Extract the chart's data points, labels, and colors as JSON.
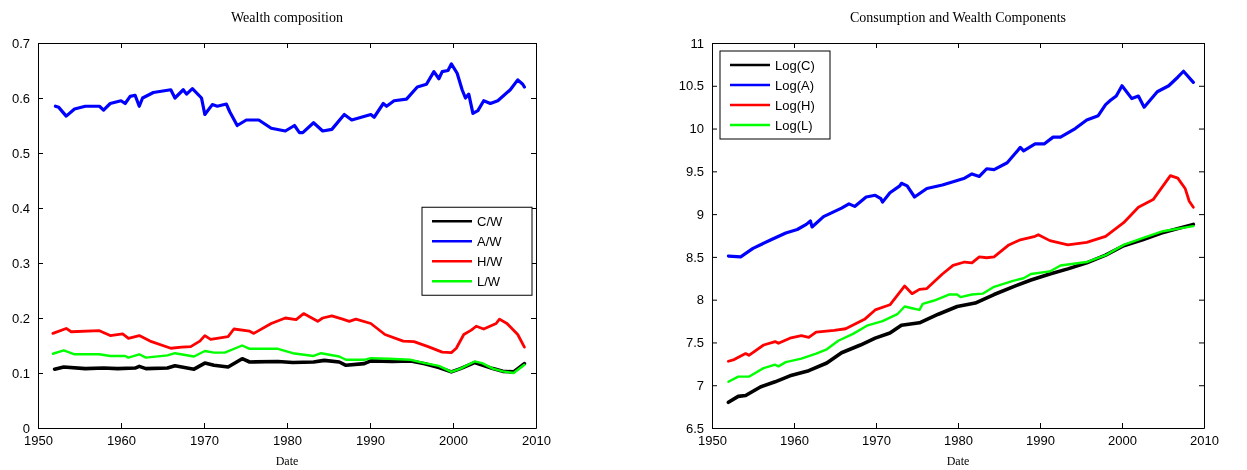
{
  "chart_data": [
    {
      "type": "line",
      "title": "Wealth composition",
      "xlabel": "Date",
      "xlim": [
        1950,
        2010
      ],
      "xticks": [
        1950,
        1960,
        1970,
        1980,
        1990,
        2000,
        2010
      ],
      "ylim": [
        0,
        0.7
      ],
      "yticks": [
        0,
        0.1,
        0.2,
        0.3,
        0.4,
        0.5,
        0.6,
        0.7
      ],
      "grid": false,
      "legend": "right",
      "series": [
        {
          "name": "C/W",
          "color": "#000000",
          "x": [
            1952,
            1953.1,
            1955.7,
            1957.9,
            1959.6,
            1961.7,
            1962.2,
            1963,
            1965.6,
            1966.5,
            1968.8,
            1970.1,
            1971.2,
            1972.9,
            1974.6,
            1975.5,
            1978.9,
            1980.7,
            1983.2,
            1984.5,
            1986.3,
            1987.1,
            1989.3,
            1990.1,
            1992.7,
            1994.9,
            1996.6,
            1998.3,
            1999.8,
            2000.9,
            2002.6,
            2004.8,
            2006,
            2007.3,
            2008.6
          ],
          "values": [
            0.107,
            0.111,
            0.108,
            0.109,
            0.108,
            0.109,
            0.112,
            0.108,
            0.109,
            0.113,
            0.107,
            0.118,
            0.114,
            0.111,
            0.126,
            0.12,
            0.121,
            0.119,
            0.12,
            0.123,
            0.12,
            0.114,
            0.117,
            0.122,
            0.121,
            0.122,
            0.117,
            0.11,
            0.102,
            0.108,
            0.119,
            0.108,
            0.103,
            0.102,
            0.117
          ]
        },
        {
          "name": "A/W",
          "color": "#0000ff",
          "x": [
            1952.1,
            1952.5,
            1953.4,
            1954.4,
            1955.7,
            1957.4,
            1957.9,
            1958.7,
            1960,
            1960.5,
            1961.1,
            1961.7,
            1962.2,
            1962.6,
            1963.9,
            1966,
            1966.5,
            1967.5,
            1967.9,
            1968.6,
            1969.7,
            1970.1,
            1971,
            1971.6,
            1972.7,
            1973.1,
            1974,
            1975.1,
            1976.6,
            1978.1,
            1979.8,
            1980.9,
            1981.5,
            1981.9,
            1983.2,
            1984.3,
            1985.4,
            1986.9,
            1987.8,
            1990.1,
            1990.5,
            1991.6,
            1992,
            1992.9,
            1994.4,
            1995.7,
            1996.8,
            1997.7,
            1998.3,
            1998.7,
            1999.4,
            1999.8,
            2000.5,
            2001.1,
            2001.5,
            2001.9,
            2002.4,
            2003,
            2003.7,
            2004.5,
            2005.4,
            2006.9,
            2007.8,
            2008.4,
            2008.6
          ],
          "values": [
            0.585,
            0.583,
            0.567,
            0.58,
            0.585,
            0.585,
            0.578,
            0.59,
            0.595,
            0.59,
            0.603,
            0.605,
            0.585,
            0.6,
            0.61,
            0.615,
            0.6,
            0.615,
            0.607,
            0.617,
            0.6,
            0.57,
            0.588,
            0.585,
            0.589,
            0.575,
            0.55,
            0.56,
            0.56,
            0.545,
            0.54,
            0.55,
            0.537,
            0.537,
            0.555,
            0.54,
            0.543,
            0.57,
            0.56,
            0.57,
            0.565,
            0.59,
            0.585,
            0.595,
            0.598,
            0.62,
            0.625,
            0.648,
            0.635,
            0.648,
            0.65,
            0.662,
            0.645,
            0.615,
            0.6,
            0.607,
            0.572,
            0.577,
            0.595,
            0.59,
            0.595,
            0.615,
            0.633,
            0.625,
            0.62
          ]
        },
        {
          "name": "H/W",
          "color": "#ff0000",
          "x": [
            1951.8,
            1953.4,
            1954,
            1957.4,
            1958.7,
            1960.2,
            1960.9,
            1962.2,
            1963.5,
            1966,
            1967.3,
            1968.4,
            1969.5,
            1970.1,
            1970.8,
            1972.9,
            1973.6,
            1975.5,
            1976,
            1978.1,
            1979.8,
            1981.1,
            1982,
            1983.7,
            1984.3,
            1985.4,
            1986.7,
            1987.5,
            1988.3,
            1990.1,
            1991.8,
            1994,
            1995.3,
            1997,
            1998.7,
            1999.8,
            2000.4,
            2001.3,
            2002.2,
            2002.8,
            2003.7,
            2005.2,
            2005.6,
            2006.5,
            2007.8,
            2008.6
          ],
          "values": [
            0.172,
            0.181,
            0.175,
            0.177,
            0.168,
            0.171,
            0.163,
            0.168,
            0.158,
            0.145,
            0.147,
            0.148,
            0.158,
            0.168,
            0.161,
            0.166,
            0.18,
            0.176,
            0.172,
            0.19,
            0.2,
            0.197,
            0.208,
            0.194,
            0.2,
            0.204,
            0.198,
            0.194,
            0.198,
            0.19,
            0.17,
            0.158,
            0.157,
            0.148,
            0.138,
            0.137,
            0.145,
            0.17,
            0.178,
            0.185,
            0.18,
            0.19,
            0.198,
            0.19,
            0.17,
            0.147
          ]
        },
        {
          "name": "L/W",
          "color": "#00ff00",
          "x": [
            1951.8,
            1953.1,
            1954.4,
            1957.4,
            1958.7,
            1960.5,
            1960.9,
            1962.2,
            1963,
            1965.6,
            1966.5,
            1968.8,
            1970.1,
            1971.2,
            1972.5,
            1974.6,
            1975.5,
            1978.9,
            1980.7,
            1983.2,
            1984.1,
            1986.3,
            1987.1,
            1989.3,
            1990.1,
            1992.3,
            1994.9,
            1996.6,
            1998.3,
            1999.8,
            2000.9,
            2002.6,
            2003.5,
            2004.8,
            2006,
            2007.3,
            2008.6
          ],
          "values": [
            0.135,
            0.141,
            0.134,
            0.134,
            0.131,
            0.131,
            0.128,
            0.134,
            0.128,
            0.132,
            0.136,
            0.13,
            0.14,
            0.137,
            0.137,
            0.15,
            0.144,
            0.144,
            0.136,
            0.131,
            0.136,
            0.13,
            0.124,
            0.124,
            0.127,
            0.126,
            0.124,
            0.118,
            0.113,
            0.102,
            0.108,
            0.121,
            0.118,
            0.108,
            0.103,
            0.1,
            0.115
          ]
        }
      ]
    },
    {
      "type": "line",
      "title": "Consumption and Wealth Components",
      "xlabel": "Date",
      "xlim": [
        1950,
        2010
      ],
      "xticks": [
        1950,
        1960,
        1970,
        1980,
        1990,
        2000,
        2010
      ],
      "ylim": [
        6.5,
        11
      ],
      "yticks": [
        6.5,
        7,
        7.5,
        8,
        8.5,
        9,
        9.5,
        10,
        10.5,
        11
      ],
      "grid": false,
      "legend": "top left",
      "series": [
        {
          "name": "Log(C)",
          "color": "#000000",
          "x": [
            1952,
            1953.2,
            1954.1,
            1955.9,
            1957.7,
            1959.5,
            1961.8,
            1964,
            1965.8,
            1968.1,
            1969.9,
            1971.7,
            1973.1,
            1975.3,
            1977.6,
            1979.9,
            1982.1,
            1984.4,
            1986.7,
            1988.9,
            1991.2,
            1993.4,
            1995.7,
            1998,
            2000.2,
            2002.5,
            2004.8,
            2008.7
          ],
          "values": [
            6.8,
            6.87,
            6.88,
            6.98,
            7.04,
            7.11,
            7.17,
            7.26,
            7.38,
            7.47,
            7.55,
            7.61,
            7.7,
            7.73,
            7.83,
            7.92,
            7.96,
            8.06,
            8.15,
            8.23,
            8.3,
            8.36,
            8.43,
            8.52,
            8.63,
            8.7,
            8.78,
            8.88
          ]
        },
        {
          "name": "Log(A)",
          "color": "#0000ff",
          "x": [
            1952,
            1953.5,
            1955,
            1957.2,
            1959,
            1960.4,
            1961.5,
            1962,
            1962.2,
            1963.6,
            1965.8,
            1966.7,
            1967.4,
            1968.8,
            1969.9,
            1970.6,
            1970.8,
            1971.7,
            1972.9,
            1973.1,
            1973.8,
            1974.7,
            1976.2,
            1978.1,
            1980.8,
            1981.7,
            1982.6,
            1983.5,
            1984.4,
            1986,
            1987.6,
            1988,
            1989.4,
            1990.5,
            1991.6,
            1992.5,
            1994.3,
            1995.7,
            1997.1,
            1998,
            1998.6,
            1999.3,
            2000,
            2001.2,
            2002,
            2002.7,
            2004.3,
            2005.7,
            2006.8,
            2007.5,
            2008.7
          ],
          "values": [
            8.51,
            8.5,
            8.6,
            8.7,
            8.78,
            8.82,
            8.88,
            8.92,
            8.85,
            8.97,
            9.07,
            9.12,
            9.09,
            9.2,
            9.22,
            9.18,
            9.14,
            9.25,
            9.33,
            9.36,
            9.33,
            9.2,
            9.3,
            9.34,
            9.42,
            9.47,
            9.44,
            9.53,
            9.52,
            9.6,
            9.78,
            9.74,
            9.82,
            9.82,
            9.9,
            9.9,
            10,
            10.1,
            10.15,
            10.28,
            10.33,
            10.38,
            10.5,
            10.35,
            10.38,
            10.25,
            10.43,
            10.5,
            10.6,
            10.67,
            10.54
          ]
        },
        {
          "name": "Log(H)",
          "color": "#ff0000",
          "x": [
            1952,
            1952.7,
            1954.1,
            1954.5,
            1956.3,
            1957.7,
            1958.1,
            1959.5,
            1960.9,
            1961.8,
            1962.7,
            1964.9,
            1966.3,
            1968.6,
            1969.9,
            1971.7,
            1973.5,
            1974.4,
            1975.3,
            1976.2,
            1978.1,
            1979.4,
            1980.8,
            1981.7,
            1982.6,
            1983.5,
            1984.4,
            1986.2,
            1987.6,
            1989.4,
            1989.8,
            1991.2,
            1993.4,
            1995.7,
            1998,
            2000.2,
            2002,
            2003.8,
            2005.9,
            2006.8,
            2007.7,
            2008.2,
            2008.7
          ],
          "values": [
            7.28,
            7.3,
            7.37,
            7.35,
            7.47,
            7.51,
            7.49,
            7.55,
            7.58,
            7.56,
            7.62,
            7.64,
            7.66,
            7.77,
            7.88,
            7.94,
            8.16,
            8.07,
            8.12,
            8.13,
            8.3,
            8.4,
            8.44,
            8.43,
            8.5,
            8.49,
            8.5,
            8.64,
            8.7,
            8.74,
            8.76,
            8.69,
            8.64,
            8.67,
            8.74,
            8.9,
            9.08,
            9.17,
            9.45,
            9.42,
            9.3,
            9.15,
            9.08
          ]
        },
        {
          "name": "Log(L)",
          "color": "#00ff00",
          "x": [
            1952,
            1953.2,
            1954.5,
            1956.3,
            1957.7,
            1958.1,
            1959,
            1960.9,
            1962.7,
            1964,
            1965.4,
            1967.2,
            1969,
            1970.8,
            1972.6,
            1973.5,
            1974.4,
            1975.3,
            1975.7,
            1977.1,
            1978.9,
            1979.9,
            1980.3,
            1981.7,
            1983,
            1984.4,
            1986.7,
            1988,
            1988.9,
            1991.2,
            1992.5,
            1995.7,
            1998,
            2000.2,
            2002.5,
            2005,
            2008.7
          ],
          "values": [
            7.04,
            7.1,
            7.1,
            7.2,
            7.24,
            7.22,
            7.27,
            7.31,
            7.37,
            7.42,
            7.52,
            7.6,
            7.7,
            7.75,
            7.83,
            7.92,
            7.9,
            7.88,
            7.95,
            7.99,
            8.06,
            8.06,
            8.03,
            8.06,
            8.07,
            8.15,
            8.22,
            8.25,
            8.3,
            8.33,
            8.4,
            8.44,
            8.52,
            8.64,
            8.72,
            8.8,
            8.86
          ]
        }
      ]
    }
  ]
}
